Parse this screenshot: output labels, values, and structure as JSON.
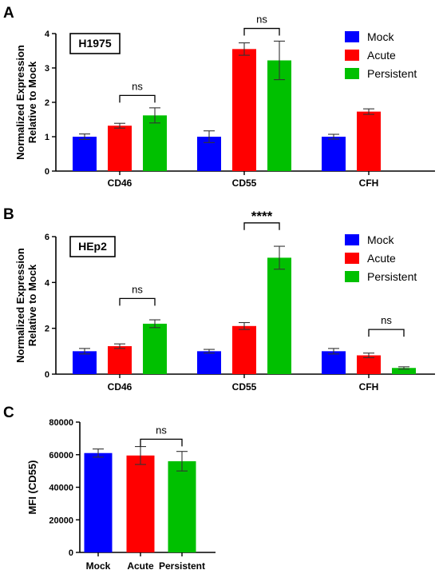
{
  "colors": {
    "Mock": "#0000ff",
    "Acute": "#ff0000",
    "Persistent": "#00c000"
  },
  "chart_data": [
    {
      "type": "bar",
      "panel": "A",
      "cell_line": "H1975",
      "ylabel": [
        "Normalized Expression",
        "Relative to Mock"
      ],
      "ylim": [
        0,
        4
      ],
      "yticks": [
        0,
        1,
        2,
        3,
        4
      ],
      "categories": [
        "CD46",
        "CD55",
        "CFH"
      ],
      "legend_position": "top-right",
      "series": [
        {
          "name": "Mock",
          "values": [
            1.0,
            1.0,
            1.0
          ],
          "errors": [
            0.08,
            0.17,
            0.07
          ]
        },
        {
          "name": "Acute",
          "values": [
            1.32,
            3.55,
            1.73
          ],
          "errors": [
            0.07,
            0.18,
            0.08
          ]
        },
        {
          "name": "Persistent",
          "values": [
            1.62,
            3.22,
            null
          ],
          "errors": [
            0.22,
            0.56,
            null
          ]
        }
      ],
      "annotations": [
        {
          "text": "ns",
          "category": 0,
          "from": 1,
          "to": 2,
          "y": 2.2,
          "stars": false
        },
        {
          "text": "ns",
          "category": 1,
          "from": 1,
          "to": 2,
          "y": 4.15,
          "stars": false
        }
      ]
    },
    {
      "type": "bar",
      "panel": "B",
      "cell_line": "HEp2",
      "ylabel": [
        "Normalized Expression",
        "Relative to Mock"
      ],
      "ylim": [
        0,
        6
      ],
      "yticks": [
        0,
        2,
        4,
        6
      ],
      "categories": [
        "CD46",
        "CD55",
        "CFH"
      ],
      "legend_position": "top-right",
      "series": [
        {
          "name": "Mock",
          "values": [
            1.0,
            1.0,
            1.0
          ],
          "errors": [
            0.12,
            0.08,
            0.12
          ]
        },
        {
          "name": "Acute",
          "values": [
            1.22,
            2.1,
            0.82
          ],
          "errors": [
            0.1,
            0.15,
            0.1
          ]
        },
        {
          "name": "Persistent",
          "values": [
            2.2,
            5.08,
            0.27
          ],
          "errors": [
            0.17,
            0.5,
            0.05
          ]
        }
      ],
      "annotations": [
        {
          "text": "ns",
          "category": 0,
          "from": 1,
          "to": 2,
          "y": 3.3,
          "stars": false
        },
        {
          "text": "****",
          "category": 1,
          "from": 1,
          "to": 2,
          "y": 6.6,
          "stars": true
        },
        {
          "text": "ns",
          "category": 2,
          "from": 1,
          "to": 2,
          "y": 1.95,
          "stars": false
        }
      ]
    },
    {
      "type": "bar",
      "panel": "C",
      "ylabel": "MFI (CD55)",
      "ylim": [
        0,
        80000
      ],
      "yticks": [
        0,
        20000,
        40000,
        60000,
        80000
      ],
      "categories": [
        "Mock",
        "Acute",
        "Persistent"
      ],
      "values": [
        61000,
        59500,
        56000
      ],
      "errors": [
        2500,
        5500,
        6000
      ],
      "annotations": [
        {
          "text": "ns",
          "from": 1,
          "to": 2,
          "y": 69500,
          "stars": false
        }
      ]
    }
  ]
}
